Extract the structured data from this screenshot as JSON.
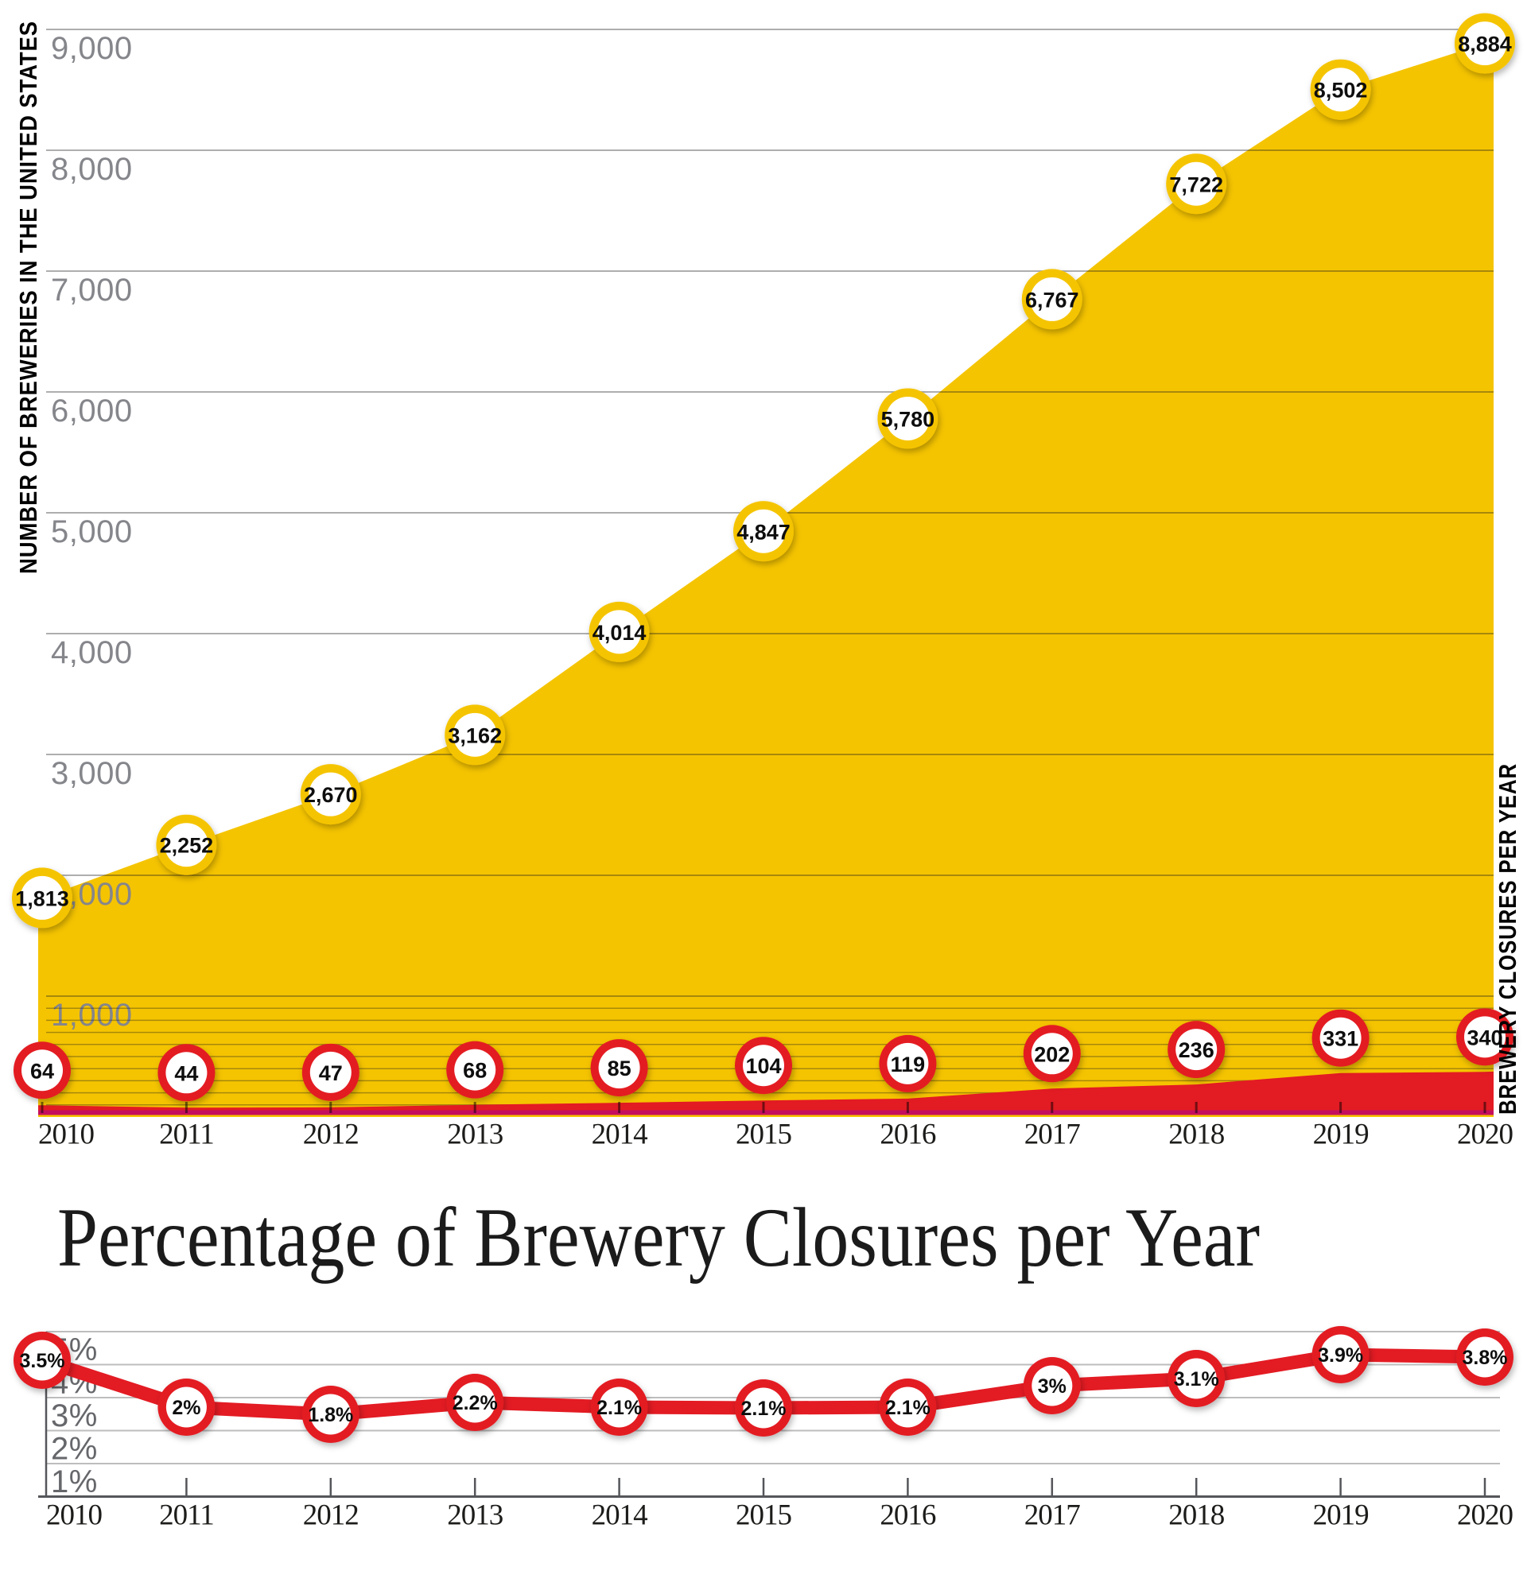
{
  "title": {
    "text": "Percentage of Brewery Closures per Year"
  },
  "top_chart": {
    "left_axis_label": "NUMBER OF BREWERIES IN THE UNITED STATES",
    "right_axis_label": "BREWERY CLOSURES PER YEAR",
    "y_tick_labels": [
      "1,000",
      "2,000",
      "3,000",
      "4,000",
      "5,000",
      "6,000",
      "7,000",
      "8,000",
      "9,000"
    ],
    "brewery_point_labels": [
      "1,813",
      "2,252",
      "2,670",
      "3,162",
      "4,014",
      "4,847",
      "5,780",
      "6,767",
      "7,722",
      "8,502",
      "8,884"
    ],
    "closure_point_labels": [
      "64",
      "44",
      "47",
      "68",
      "85",
      "104",
      "119",
      "202",
      "236",
      "331",
      "340"
    ]
  },
  "bottom_chart": {
    "y_tick_labels": [
      "5%",
      "4%",
      "3%",
      "2%",
      "1%"
    ],
    "point_labels": [
      "3.5%",
      "2%",
      "1.8%",
      "2.2%",
      "2.1%",
      "2.1%",
      "2.1%",
      "3%",
      "3.1%",
      "3.9%",
      "3.8%"
    ]
  },
  "chart_data": [
    {
      "type": "area",
      "title": "",
      "categories": [
        "2010",
        "2011",
        "2012",
        "2013",
        "2014",
        "2015",
        "2016",
        "2017",
        "2018",
        "2019",
        "2020"
      ],
      "series": [
        {
          "name": "Number of breweries in the United States",
          "values": [
            1813,
            2252,
            2670,
            3162,
            4014,
            4847,
            5780,
            6767,
            7722,
            8502,
            8884
          ]
        },
        {
          "name": "Brewery closures per year",
          "values": [
            64,
            44,
            47,
            68,
            85,
            104,
            119,
            202,
            236,
            331,
            340
          ]
        }
      ],
      "ylabel": "NUMBER OF BREWERIES IN THE UNITED STATES",
      "ylabel_right": "BREWERY CLOSURES PER YEAR",
      "ylim": [
        0,
        9000
      ],
      "yticks_major": [
        1000,
        2000,
        3000,
        4000,
        5000,
        6000,
        7000,
        8000,
        9000
      ],
      "yticks_minor": [
        100,
        200,
        300,
        400,
        500,
        600,
        700,
        800,
        900
      ],
      "grid": true,
      "legend_position": "none"
    },
    {
      "type": "line",
      "title": "Percentage of Brewery Closures per Year",
      "categories": [
        "2010",
        "2011",
        "2012",
        "2013",
        "2014",
        "2015",
        "2016",
        "2017",
        "2018",
        "2019",
        "2020"
      ],
      "values": [
        3.5,
        2.0,
        1.8,
        2.2,
        2.1,
        2.1,
        2.1,
        3.0,
        3.1,
        3.9,
        3.8
      ],
      "xlabel": "",
      "ylabel": "",
      "ylim": [
        0,
        5
      ],
      "yticks": [
        5,
        4,
        3,
        2,
        1
      ],
      "grid": true,
      "legend_position": "none"
    }
  ],
  "colors": {
    "brewery_area": "#F5C400",
    "closure_area": "#E31B23",
    "closure_line": "#E31B23",
    "baseline_strip": "#C40F5E",
    "left_label": "#F0A32F",
    "right_label": "#E31B23",
    "gridline": "rgba(30,30,30,0.36)",
    "bottom_grid": "#bdbdbe",
    "bottom_axis": "#55565a"
  }
}
